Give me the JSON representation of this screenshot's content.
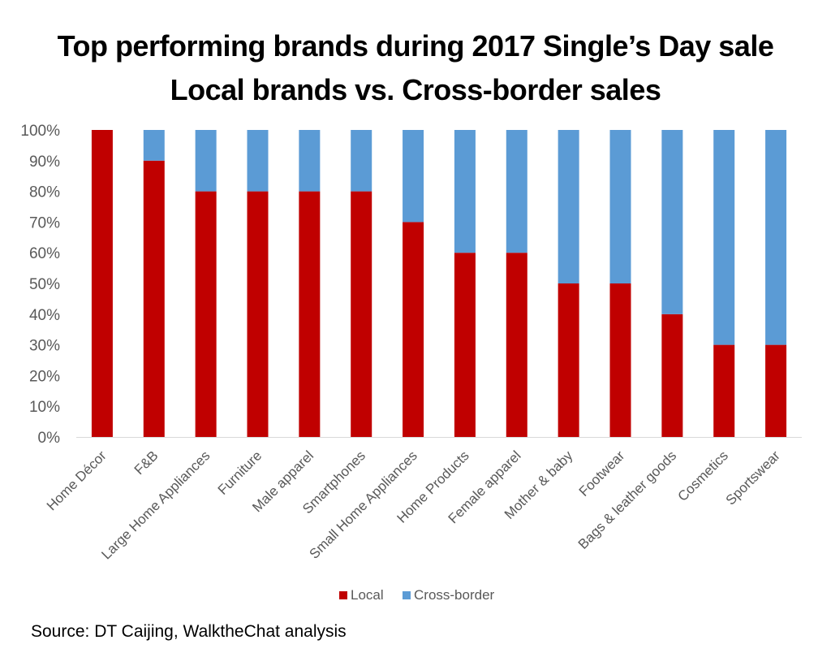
{
  "chart_data": {
    "type": "bar",
    "stacked": true,
    "title": "Top performing brands during 2017 Single’s Day sale",
    "subtitle": "Local brands vs. Cross-border sales",
    "categories": [
      "Home Décor",
      "F&B",
      "Large Home Appliances",
      "Furniture",
      "Male apparel",
      "Smartphones",
      "Small Home Appliances",
      "Home Products",
      "Female apparel",
      "Mother & baby",
      "Footwear",
      "Bags & leather goods",
      "Cosmetics",
      "Sportswear"
    ],
    "series": [
      {
        "name": "Local",
        "color": "#c00000",
        "values": [
          100,
          90,
          80,
          80,
          80,
          80,
          70,
          60,
          60,
          50,
          50,
          40,
          30,
          30
        ]
      },
      {
        "name": "Cross-border",
        "color": "#5b9bd5",
        "values": [
          0,
          10,
          20,
          20,
          20,
          20,
          30,
          40,
          40,
          50,
          50,
          60,
          70,
          70
        ]
      }
    ],
    "ylim": [
      0,
      100
    ],
    "yticks": [
      "0%",
      "10%",
      "20%",
      "30%",
      "40%",
      "50%",
      "60%",
      "70%",
      "80%",
      "90%",
      "100%"
    ],
    "xlabel": "",
    "ylabel": "",
    "legend": "bottom-center",
    "grid": false
  },
  "source": "Source: DT Caijing, WalktheChat analysis"
}
